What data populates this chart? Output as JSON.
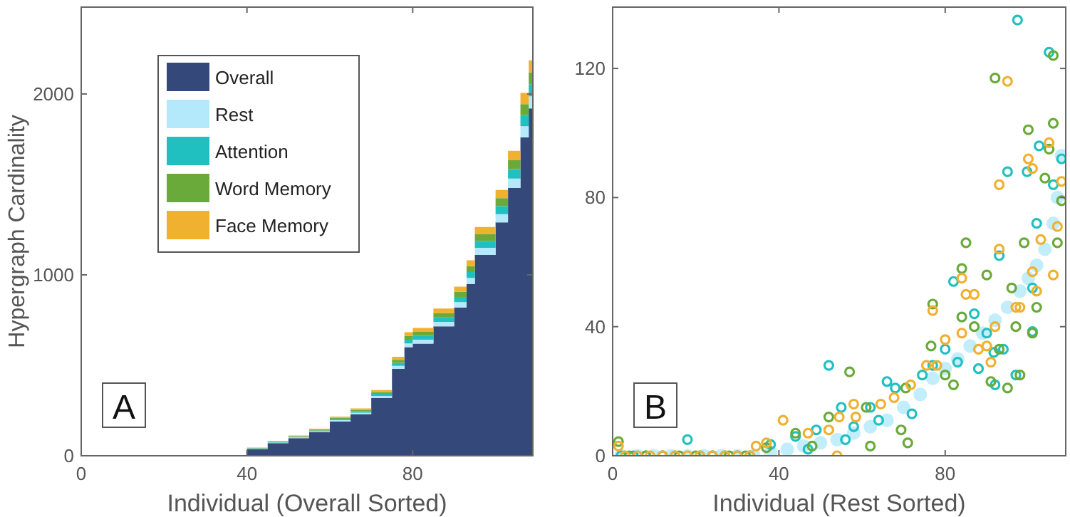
{
  "chart_data": [
    {
      "type": "area",
      "stacked": true,
      "ylabel": "Hypergraph Cardinality",
      "xlabel": "Individual (Overall Sorted)",
      "annotations": [
        "A"
      ],
      "legend": "top left",
      "xlim": [
        0,
        109
      ],
      "ylim": [
        0,
        2480
      ],
      "xticks": [
        0,
        40,
        80
      ],
      "yticks": [
        0,
        1000,
        2000
      ],
      "x": [
        0,
        35,
        40,
        45,
        50,
        55,
        60,
        65,
        70,
        75,
        78,
        80,
        85,
        90,
        93,
        95,
        100,
        103,
        106,
        108,
        109
      ],
      "series": [
        {
          "name": "Overall",
          "color": "#34497a",
          "values": [
            0,
            0,
            37,
            70,
            97,
            130,
            190,
            230,
            320,
            480,
            600,
            620,
            715,
            820,
            950,
            1110,
            1290,
            1480,
            1760,
            1920,
            1920
          ]
        },
        {
          "name": "Rest",
          "color": "#b3e9fb",
          "values": [
            0,
            0,
            2,
            3,
            4,
            5,
            7,
            8,
            11,
            17,
            21,
            22,
            25,
            29,
            33,
            39,
            45,
            52,
            62,
            67,
            67
          ]
        },
        {
          "name": "Attention",
          "color": "#20c0c0",
          "values": [
            0,
            0,
            2,
            3,
            4,
            5,
            7,
            8,
            11,
            17,
            21,
            22,
            25,
            29,
            33,
            39,
            45,
            52,
            62,
            67,
            67
          ]
        },
        {
          "name": "Word Memory",
          "color": "#6aaa3a",
          "values": [
            0,
            0,
            2,
            3,
            3,
            5,
            6,
            8,
            10,
            16,
            20,
            21,
            24,
            28,
            32,
            38,
            44,
            50,
            60,
            65,
            65
          ]
        },
        {
          "name": "Face Memory",
          "color": "#f0b030",
          "values": [
            0,
            0,
            2,
            3,
            4,
            5,
            7,
            8,
            11,
            17,
            21,
            22,
            25,
            29,
            33,
            39,
            45,
            52,
            62,
            67,
            67
          ]
        }
      ]
    },
    {
      "type": "scatter",
      "marker": "circle",
      "xlabel": "Individual (Rest Sorted)",
      "annotations": [
        "B"
      ],
      "xlim": [
        0,
        109
      ],
      "ylim": [
        0,
        139
      ],
      "xticks": [
        0,
        40,
        80
      ],
      "yticks": [
        0,
        40,
        80,
        120
      ],
      "series": [
        {
          "color": "#b3e9fb",
          "x": [
            2,
            6,
            10,
            14,
            18,
            22,
            26,
            30,
            34,
            38,
            42,
            46,
            50,
            54,
            58,
            62,
            66,
            70,
            74,
            77,
            80,
            83,
            86,
            89,
            92,
            95,
            98,
            100,
            102,
            104,
            106,
            107,
            108
          ],
          "values": [
            0,
            0,
            0,
            0,
            0,
            0,
            0,
            0,
            0,
            1,
            2,
            3,
            4,
            5,
            7,
            9,
            11,
            15,
            19,
            24,
            27,
            30,
            34,
            38,
            42,
            46,
            51,
            55,
            59,
            64,
            72,
            80,
            93
          ]
        },
        {
          "color": "#20c0c0",
          "x": [
            2,
            5,
            8,
            12,
            15,
            18,
            21,
            24,
            27,
            30,
            33,
            38,
            44,
            47,
            49,
            52,
            55,
            56,
            58,
            62,
            64,
            66,
            68,
            72,
            74.5,
            77,
            80,
            82,
            83,
            87,
            88,
            90,
            91.7,
            92,
            93,
            94,
            95,
            97,
            97.4,
            99.7,
            101,
            101,
            102,
            102.6,
            105,
            106,
            108
          ],
          "values": [
            0,
            0,
            0,
            0,
            0,
            5,
            0,
            0,
            0,
            0,
            0,
            3.5,
            6,
            2,
            8,
            28,
            15,
            5,
            9,
            15,
            11,
            23,
            21,
            13,
            25,
            28,
            33,
            54,
            29,
            44,
            27,
            38,
            32,
            22,
            62,
            33,
            88,
            25,
            135,
            88,
            52,
            38.5,
            72,
            96,
            125,
            84,
            92
          ]
        },
        {
          "color": "#6aaa3a",
          "x": [
            1.4,
            4,
            8,
            12,
            16,
            20,
            24,
            28,
            32,
            37,
            44,
            48,
            52,
            57,
            61,
            62,
            69.4,
            70.5,
            71,
            76.6,
            77,
            80,
            82,
            84,
            84,
            85,
            87,
            90,
            91,
            92,
            93,
            95,
            96,
            97,
            98,
            99,
            100,
            101,
            102,
            104,
            105,
            106,
            106,
            107,
            108
          ],
          "values": [
            4.4,
            0,
            0,
            0,
            0,
            0,
            0,
            0,
            0,
            2.5,
            7,
            3,
            12,
            26,
            15,
            3,
            8,
            21,
            4,
            34,
            47,
            25,
            22,
            58,
            43,
            66,
            40,
            56,
            23,
            117,
            33,
            21,
            52,
            40,
            25,
            66,
            101,
            38,
            46,
            86,
            95,
            124,
            103,
            66,
            79
          ]
        },
        {
          "color": "#f0b030",
          "x": [
            1.4,
            3,
            6,
            9,
            12,
            15,
            18,
            21,
            24,
            27,
            30,
            33,
            34.5,
            37,
            41,
            47,
            52,
            54,
            54.5,
            58,
            58.5,
            64.5,
            67.7,
            71.7,
            75.5,
            77,
            78,
            80,
            84,
            84,
            85,
            87,
            88,
            90,
            91,
            92,
            93,
            93,
            95,
            97,
            98,
            100,
            101,
            101,
            102,
            103,
            105,
            106,
            107,
            108
          ],
          "values": [
            3,
            0,
            0,
            0,
            0,
            0,
            0,
            0,
            0,
            0,
            0,
            0,
            3,
            4,
            11,
            7,
            8,
            0,
            12,
            16,
            12,
            16,
            18,
            22,
            28,
            45,
            28,
            36,
            55,
            38,
            50,
            50,
            33,
            34,
            29,
            40,
            64,
            84,
            116,
            46,
            46,
            92,
            89,
            57,
            51,
            67,
            97,
            56,
            71,
            85
          ]
        }
      ]
    }
  ]
}
